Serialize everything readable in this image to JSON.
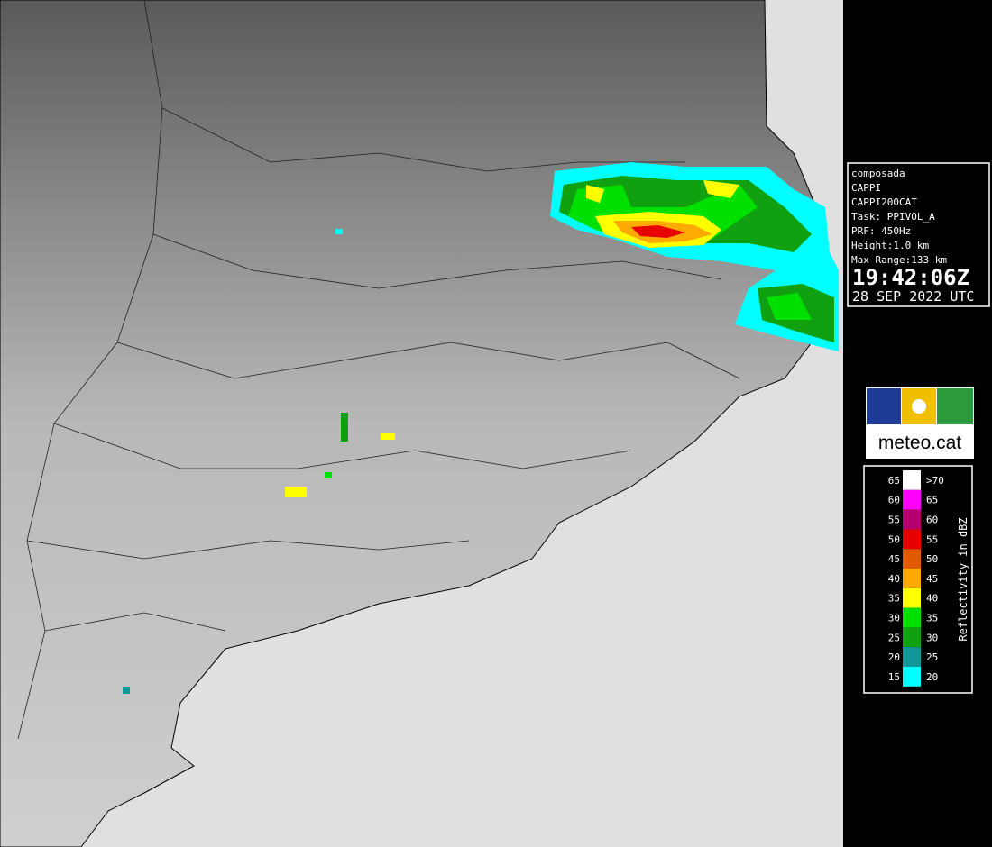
{
  "info": {
    "lines": [
      "composada",
      "CAPPI",
      "CAPPI200CAT",
      "Task: PPIVOL_A",
      "PRF: 450Hz",
      "Height:1.0 km",
      "Max Range:133 km"
    ],
    "time": "19:42:06Z",
    "date": "28 SEP 2022 UTC"
  },
  "logo": {
    "text": "meteo.cat"
  },
  "legend": {
    "title": "Reflectivity in dBZ",
    "rows": [
      {
        "low": 65,
        "high": ">70",
        "color": "#ffffff"
      },
      {
        "low": 60,
        "high": 65,
        "color": "#ff00ff"
      },
      {
        "low": 55,
        "high": 60,
        "color": "#b4006e"
      },
      {
        "low": 50,
        "high": 55,
        "color": "#e80000"
      },
      {
        "low": 45,
        "high": 50,
        "color": "#e05a00"
      },
      {
        "low": 40,
        "high": 45,
        "color": "#ffaa00"
      },
      {
        "low": 35,
        "high": 40,
        "color": "#ffff00"
      },
      {
        "low": 30,
        "high": 35,
        "color": "#00e000"
      },
      {
        "low": 25,
        "high": 30,
        "color": "#10a010"
      },
      {
        "low": 20,
        "high": 25,
        "color": "#109898"
      },
      {
        "low": 15,
        "high": 20,
        "color": "#00ffff"
      }
    ]
  }
}
